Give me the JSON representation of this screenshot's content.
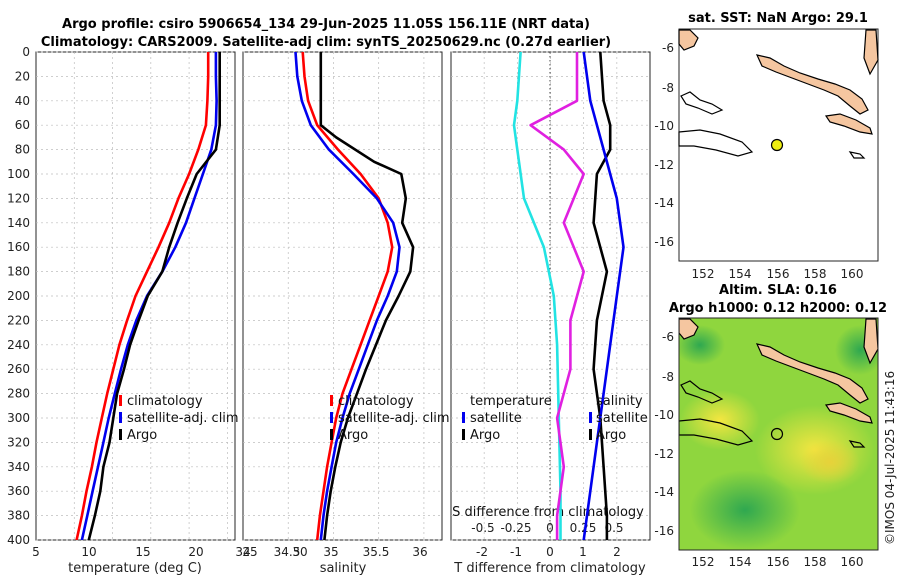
{
  "title": {
    "line1": "Argo profile: csiro 5906654_134 29-Jun-2025 11.05S 156.11E (NRT data)",
    "line2": "Climatology: CARS2009. Satellite-adj clim: synTS_20250629.nc (0.27d earlier)"
  },
  "colors": {
    "climatology": "#ff0000",
    "satellite": "#0000ee",
    "argo": "#000000",
    "temp_diff": "#22e3e3",
    "sal_diff": "#e020e0",
    "land": "#f5c6a0"
  },
  "panels": {
    "temp": {
      "xlabel": "temperature (deg C)",
      "xticks": [
        "5",
        "10",
        "15",
        "20",
        "25",
        "30"
      ]
    },
    "sal": {
      "xlabel": "salinity",
      "xticks": [
        "34",
        "34.5",
        "35",
        "35.5",
        "36"
      ]
    },
    "diff": {
      "xlabel": "T difference from climatology",
      "xticks": [
        "-2",
        "-1",
        "0",
        "1",
        "2"
      ],
      "s_title": "S difference from climatology",
      "s_ticks": [
        "-0.5",
        "-0.25",
        "0",
        "0.25",
        "0.5"
      ]
    },
    "map_sst": {
      "title": "sat. SST: NaN Argo: 29.1",
      "xticks": [
        "152",
        "154",
        "156",
        "158",
        "160"
      ],
      "yticks": [
        "-6",
        "-8",
        "-10",
        "-12",
        "-14",
        "-16"
      ]
    },
    "map_sla": {
      "title1": "Altim. SLA: 0.16",
      "title2": "Argo h1000: 0.12 h2000: 0.12",
      "xticks": [
        "152",
        "154",
        "156",
        "158",
        "160"
      ],
      "yticks": [
        "-6",
        "-8",
        "-10",
        "-12",
        "-14",
        "-16"
      ]
    }
  },
  "yticks": [
    "0",
    "20",
    "40",
    "60",
    "80",
    "100",
    "120",
    "140",
    "160",
    "180",
    "200",
    "220",
    "240",
    "260",
    "280",
    "300",
    "320",
    "340",
    "360",
    "380",
    "400"
  ],
  "legend": {
    "profiles": [
      "climatology",
      "satellite-adj. clim",
      "Argo"
    ],
    "diff_temp_title": "temperature",
    "diff_sal_title": "salinity",
    "diff_items": [
      "satellite",
      "Argo"
    ]
  },
  "credit": "©IMOS 04-Jul-2025 11:43:16",
  "chart_data": [
    {
      "type": "line",
      "title": "temperature profile",
      "xlabel": "temperature (deg C)",
      "ylabel": "depth (dbar)",
      "xlim": [
        5,
        31
      ],
      "ylim": [
        0,
        400
      ],
      "series": [
        {
          "name": "climatology",
          "color": "#ff0000",
          "points": [
            [
              27.5,
              0
            ],
            [
              27.5,
              20
            ],
            [
              27.4,
              40
            ],
            [
              27.2,
              60
            ],
            [
              26.2,
              80
            ],
            [
              25,
              100
            ],
            [
              23.6,
              120
            ],
            [
              22.4,
              140
            ],
            [
              21,
              160
            ],
            [
              19.5,
              180
            ],
            [
              18,
              200
            ],
            [
              16.9,
              220
            ],
            [
              15.9,
              240
            ],
            [
              15.1,
              260
            ],
            [
              14.3,
              280
            ],
            [
              13.6,
              300
            ],
            [
              12.9,
              320
            ],
            [
              12.3,
              340
            ],
            [
              11.6,
              360
            ],
            [
              11,
              380
            ],
            [
              10.3,
              400
            ]
          ]
        },
        {
          "name": "satellite-adj. clim",
          "color": "#0000ee",
          "points": [
            [
              28.5,
              0
            ],
            [
              28.5,
              20
            ],
            [
              28.6,
              40
            ],
            [
              28.5,
              60
            ],
            [
              27.9,
              80
            ],
            [
              26.8,
              100
            ],
            [
              25.7,
              120
            ],
            [
              24.6,
              140
            ],
            [
              23.2,
              160
            ],
            [
              21.5,
              180
            ],
            [
              19.5,
              200
            ],
            [
              18.1,
              220
            ],
            [
              17,
              240
            ],
            [
              16.1,
              260
            ],
            [
              15.3,
              280
            ],
            [
              14.5,
              300
            ],
            [
              13.8,
              320
            ],
            [
              13.1,
              340
            ],
            [
              12.4,
              360
            ],
            [
              11.7,
              380
            ],
            [
              11,
              400
            ]
          ]
        },
        {
          "name": "Argo",
          "color": "#000000",
          "points": [
            [
              29,
              0
            ],
            [
              29,
              20
            ],
            [
              29,
              40
            ],
            [
              29,
              60
            ],
            [
              28.5,
              80
            ],
            [
              26,
              100
            ],
            [
              24.7,
              120
            ],
            [
              23.5,
              140
            ],
            [
              22.4,
              160
            ],
            [
              21.5,
              180
            ],
            [
              19.6,
              200
            ],
            [
              18.4,
              220
            ],
            [
              17.3,
              240
            ],
            [
              16.5,
              260
            ],
            [
              15.6,
              280
            ],
            [
              15.1,
              300
            ],
            [
              14.6,
              320
            ],
            [
              13.8,
              340
            ],
            [
              13.4,
              360
            ],
            [
              12.7,
              380
            ],
            [
              11.9,
              400
            ]
          ]
        }
      ]
    },
    {
      "type": "line",
      "title": "salinity profile",
      "xlabel": "salinity",
      "ylabel": "depth (dbar)",
      "xlim": [
        34,
        36.2
      ],
      "ylim": [
        0,
        400
      ],
      "series": [
        {
          "name": "climatology",
          "color": "#ff0000",
          "points": [
            [
              34.66,
              0
            ],
            [
              34.68,
              20
            ],
            [
              34.72,
              40
            ],
            [
              34.82,
              60
            ],
            [
              35.05,
              80
            ],
            [
              35.3,
              100
            ],
            [
              35.5,
              120
            ],
            [
              35.6,
              140
            ],
            [
              35.65,
              160
            ],
            [
              35.6,
              180
            ],
            [
              35.5,
              200
            ],
            [
              35.4,
              220
            ],
            [
              35.3,
              240
            ],
            [
              35.2,
              260
            ],
            [
              35.1,
              280
            ],
            [
              35.03,
              300
            ],
            [
              34.98,
              320
            ],
            [
              34.93,
              340
            ],
            [
              34.89,
              360
            ],
            [
              34.85,
              380
            ],
            [
              34.82,
              400
            ]
          ]
        },
        {
          "name": "satellite-adj. clim",
          "color": "#0000ee",
          "points": [
            [
              34.58,
              0
            ],
            [
              34.6,
              20
            ],
            [
              34.65,
              40
            ],
            [
              34.75,
              60
            ],
            [
              34.95,
              80
            ],
            [
              35.22,
              100
            ],
            [
              35.48,
              120
            ],
            [
              35.66,
              140
            ],
            [
              35.73,
              160
            ],
            [
              35.7,
              180
            ],
            [
              35.6,
              200
            ],
            [
              35.48,
              220
            ],
            [
              35.38,
              240
            ],
            [
              35.28,
              260
            ],
            [
              35.18,
              280
            ],
            [
              35.1,
              300
            ],
            [
              35.03,
              320
            ],
            [
              34.98,
              340
            ],
            [
              34.93,
              360
            ],
            [
              34.89,
              380
            ],
            [
              34.86,
              400
            ]
          ]
        },
        {
          "name": "Argo",
          "color": "#000000",
          "points": [
            [
              34.86,
              0
            ],
            [
              34.86,
              20
            ],
            [
              34.86,
              40
            ],
            [
              34.86,
              60
            ],
            [
              35.03,
              70
            ],
            [
              35.45,
              90
            ],
            [
              35.75,
              100
            ],
            [
              35.8,
              120
            ],
            [
              35.76,
              140
            ],
            [
              35.88,
              160
            ],
            [
              35.85,
              180
            ],
            [
              35.72,
              200
            ],
            [
              35.58,
              220
            ],
            [
              35.47,
              240
            ],
            [
              35.36,
              260
            ],
            [
              35.26,
              280
            ],
            [
              35.16,
              300
            ],
            [
              35.08,
              320
            ],
            [
              35.02,
              340
            ],
            [
              34.97,
              360
            ],
            [
              34.93,
              380
            ],
            [
              34.9,
              400
            ]
          ]
        }
      ]
    },
    {
      "type": "line",
      "title": "difference from climatology",
      "xlabel": "T difference from climatology",
      "ylabel": "depth (dbar)",
      "xlim": [
        -3,
        3
      ],
      "ylim": [
        0,
        400
      ],
      "s_axis": {
        "label": "S difference from climatology",
        "lim": [
          -0.75,
          0.75
        ]
      },
      "series": [
        {
          "name": "temperature satellite",
          "color": "#22e3e3",
          "units": "deg C",
          "points": [
            [
              -0.9,
              0
            ],
            [
              -1,
              40
            ],
            [
              -1.1,
              60
            ],
            [
              -1,
              80
            ],
            [
              -0.8,
              120
            ],
            [
              -0.2,
              160
            ],
            [
              0.1,
              200
            ],
            [
              0.2,
              240
            ],
            [
              0.25,
              300
            ],
            [
              0.3,
              360
            ],
            [
              0.3,
              400
            ]
          ]
        },
        {
          "name": "temperature Argo",
          "color": "#000000",
          "units": "deg C",
          "points": [
            [
              1.5,
              0
            ],
            [
              1.6,
              40
            ],
            [
              1.8,
              60
            ],
            [
              1.8,
              80
            ],
            [
              1.4,
              100
            ],
            [
              1.3,
              140
            ],
            [
              1.7,
              180
            ],
            [
              1.4,
              220
            ],
            [
              1.3,
              260
            ],
            [
              1.5,
              300
            ],
            [
              1.6,
              340
            ],
            [
              1.7,
              380
            ],
            [
              1.7,
              400
            ]
          ]
        },
        {
          "name": "salinity satellite",
          "color": "#0000ee",
          "units": "psu",
          "points": [
            [
              0.25,
              0
            ],
            [
              0.3,
              40
            ],
            [
              0.4,
              80
            ],
            [
              0.5,
              120
            ],
            [
              0.55,
              160
            ],
            [
              0.5,
              200
            ],
            [
              0.45,
              240
            ],
            [
              0.4,
              280
            ],
            [
              0.35,
              320
            ],
            [
              0.3,
              360
            ],
            [
              0.25,
              400
            ]
          ]
        },
        {
          "name": "salinity Argo",
          "color": "#e020e0",
          "units": "psu",
          "points": [
            [
              0.2,
              0
            ],
            [
              0.2,
              40
            ],
            [
              -0.15,
              60
            ],
            [
              0.1,
              80
            ],
            [
              0.25,
              100
            ],
            [
              0.1,
              140
            ],
            [
              0.25,
              180
            ],
            [
              0.15,
              220
            ],
            [
              0.15,
              260
            ],
            [
              0.05,
              300
            ],
            [
              0.1,
              340
            ],
            [
              0.05,
              380
            ],
            [
              0.05,
              400
            ]
          ]
        }
      ]
    }
  ]
}
